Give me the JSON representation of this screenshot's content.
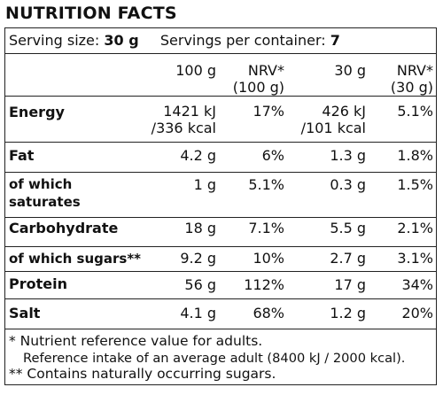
{
  "title": "NUTRITION FACTS",
  "serving": {
    "size_label": "Serving size:",
    "size_value": "30 g",
    "servings_label": "Servings per container:",
    "servings_value": "7"
  },
  "headers": {
    "col1": "100 g",
    "col2_line1": "NRV*",
    "col2_line2": "(100 g)",
    "col3": "30 g",
    "col4_line1": "NRV*",
    "col4_line2": "(30 g)"
  },
  "rows": [
    {
      "label_line1": "Energy",
      "label_line2": "",
      "v100_line1": "1421 kJ",
      "v100_line2": "/336 kcal",
      "nrv100": "17%",
      "v30_line1": "426 kJ",
      "v30_line2": "/101 kcal",
      "nrv30": "5.1%"
    },
    {
      "label_line1": "Fat",
      "label_line2": "",
      "v100_line1": "4.2 g",
      "v100_line2": "",
      "nrv100": "6%",
      "v30_line1": "1.3 g",
      "v30_line2": "",
      "nrv30": "1.8%"
    },
    {
      "label_line1": "of which",
      "label_line2": "saturates",
      "v100_line1": "1 g",
      "v100_line2": "",
      "nrv100": "5.1%",
      "v30_line1": "0.3 g",
      "v30_line2": "",
      "nrv30": "1.5%"
    },
    {
      "label_line1": "Carbohydrate",
      "label_line2": "",
      "v100_line1": "18 g",
      "v100_line2": "",
      "nrv100": "7.1%",
      "v30_line1": "5.5 g",
      "v30_line2": "",
      "nrv30": "2.1%"
    },
    {
      "label_line1": "of which sugars**",
      "label_line2": "",
      "v100_line1": "9.2 g",
      "v100_line2": "",
      "nrv100": "10%",
      "v30_line1": "2.7 g",
      "v30_line2": "",
      "nrv30": "3.1%"
    },
    {
      "label_line1": "Protein",
      "label_line2": "",
      "v100_line1": "56 g",
      "v100_line2": "",
      "nrv100": "112%",
      "v30_line1": "17 g",
      "v30_line2": "",
      "nrv30": "34%"
    },
    {
      "label_line1": "Salt",
      "label_line2": "",
      "v100_line1": "4.1 g",
      "v100_line2": "",
      "nrv100": "68%",
      "v30_line1": "1.2 g",
      "v30_line2": "",
      "nrv30": "20%"
    }
  ],
  "footnotes": {
    "line1": "* Nutrient reference value for adults.",
    "line2": "Reference intake of an average adult (8400 kJ / 2000 kcal).",
    "line3": "** Contains naturally occurring sugars."
  }
}
